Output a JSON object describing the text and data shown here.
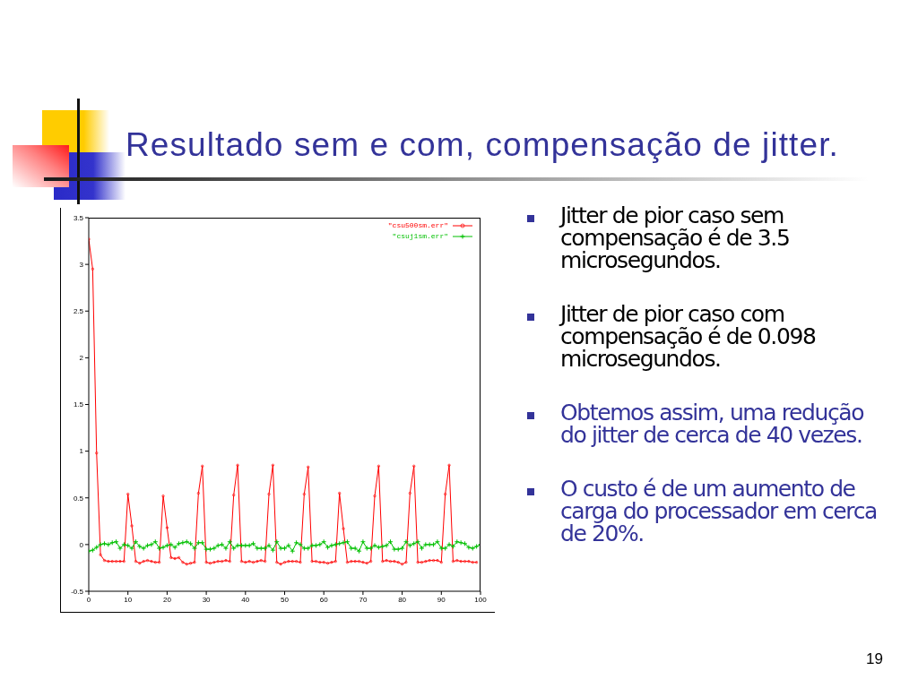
{
  "chart_data": {
    "type": "line",
    "title": "Resultado sem e com, compensação de jitter.",
    "x": [
      0,
      1,
      2,
      3,
      4,
      5,
      6,
      7,
      8,
      9,
      10,
      11,
      12,
      13,
      14,
      15,
      16,
      17,
      18,
      19,
      20,
      21,
      22,
      23,
      24,
      25,
      26,
      27,
      28,
      29,
      30,
      31,
      32,
      33,
      34,
      35,
      36,
      37,
      38,
      39,
      40,
      41,
      42,
      43,
      44,
      45,
      46,
      47,
      48,
      49,
      50,
      51,
      52,
      53,
      54,
      55,
      56,
      57,
      58,
      59,
      60,
      61,
      62,
      63,
      64,
      65,
      66,
      67,
      68,
      69,
      70,
      71,
      72,
      73,
      74,
      75,
      76,
      77,
      78,
      79,
      80,
      81,
      82,
      83,
      84,
      85,
      86,
      87,
      88,
      89,
      90,
      91,
      92,
      93,
      94,
      95,
      96,
      97,
      98,
      99,
      100
    ],
    "series": [
      {
        "name": "\"csu500sm.err\"",
        "color": "#ff0000",
        "marker": "circle",
        "values": [
          3.27,
          2.95,
          0.98,
          -0.11,
          -0.17,
          -0.18,
          -0.18,
          -0.18,
          -0.18,
          -0.18,
          0.54,
          0.2,
          -0.18,
          -0.2,
          -0.18,
          -0.17,
          -0.18,
          -0.19,
          -0.19,
          0.52,
          0.18,
          -0.14,
          -0.15,
          -0.14,
          -0.19,
          -0.21,
          -0.2,
          -0.19,
          0.55,
          0.84,
          -0.19,
          -0.2,
          -0.19,
          -0.18,
          -0.18,
          -0.17,
          -0.18,
          0.53,
          0.85,
          -0.18,
          -0.19,
          -0.18,
          -0.19,
          -0.18,
          -0.17,
          -0.18,
          0.54,
          0.85,
          -0.19,
          -0.21,
          -0.19,
          -0.18,
          -0.18,
          -0.18,
          -0.19,
          0.54,
          0.83,
          -0.18,
          -0.18,
          -0.19,
          -0.19,
          -0.2,
          -0.19,
          -0.18,
          0.55,
          0.17,
          -0.19,
          -0.18,
          -0.18,
          -0.18,
          -0.19,
          -0.2,
          -0.18,
          0.52,
          0.84,
          -0.18,
          -0.17,
          -0.18,
          -0.18,
          -0.19,
          -0.21,
          -0.19,
          0.55,
          0.84,
          -0.19,
          -0.19,
          -0.18,
          -0.17,
          -0.17,
          -0.17,
          -0.19,
          0.54,
          0.85,
          -0.18,
          -0.17,
          -0.18,
          -0.18,
          -0.18,
          -0.19,
          -0.19,
          null
        ]
      },
      {
        "name": "\"csuj1sm.err\"",
        "color": "#00c000",
        "marker": "cross",
        "values": [
          -0.07,
          -0.06,
          -0.03,
          0,
          0.01,
          0,
          0.02,
          0.03,
          -0.04,
          0,
          -0.01,
          -0.04,
          0.03,
          -0.02,
          -0.04,
          -0.01,
          0,
          0.03,
          -0.04,
          -0.03,
          -0.01,
          0,
          -0.03,
          0.01,
          0.02,
          0.03,
          0.01,
          -0.04,
          0.02,
          0.02,
          -0.05,
          -0.05,
          -0.04,
          -0.01,
          0,
          -0.04,
          0.03,
          -0.04,
          -0.01,
          -0.01,
          -0.01,
          -0.01,
          0.01,
          -0.04,
          -0.04,
          -0.04,
          -0.01,
          -0.06,
          0.03,
          -0.04,
          -0.04,
          -0.01,
          -0.07,
          0.02,
          0,
          -0.04,
          -0.04,
          -0.01,
          -0.01,
          0,
          0.03,
          -0.03,
          -0.01,
          0,
          0.01,
          0.02,
          0.03,
          -0.04,
          -0.04,
          -0.07,
          0.03,
          -0.04,
          -0.04,
          -0.01,
          -0.03,
          -0.02,
          -0.01,
          0.03,
          -0.05,
          -0.05,
          -0.04,
          0.03,
          -0.01,
          0.01,
          0.03,
          -0.04,
          0,
          0,
          0,
          0.03,
          -0.04,
          -0.04,
          0,
          -0.02,
          0.03,
          0.02,
          0.01,
          -0.03,
          -0.04,
          -0.02,
          0
        ]
      }
    ],
    "xlim": [
      0,
      100
    ],
    "xticks": [
      0,
      10,
      20,
      30,
      40,
      50,
      60,
      70,
      80,
      90,
      100
    ],
    "ylim": [
      -0.5,
      3.5
    ],
    "yticks": [
      -0.5,
      0,
      0.5,
      1,
      1.5,
      2,
      2.5,
      3,
      3.5
    ],
    "legend": "top right",
    "line_style": "solid",
    "annotations": [
      "Jitter de pior caso sem compensação é de 3.5 microsegundos.",
      "Jitter de pior caso com compensação é de 0.098 microsegundos.",
      "Obtemos assim, uma redução do jitter de cerca de 40 vezes.",
      "O custo é de um aumento de carga do processador em cerca de 20%.",
      "19"
    ]
  }
}
